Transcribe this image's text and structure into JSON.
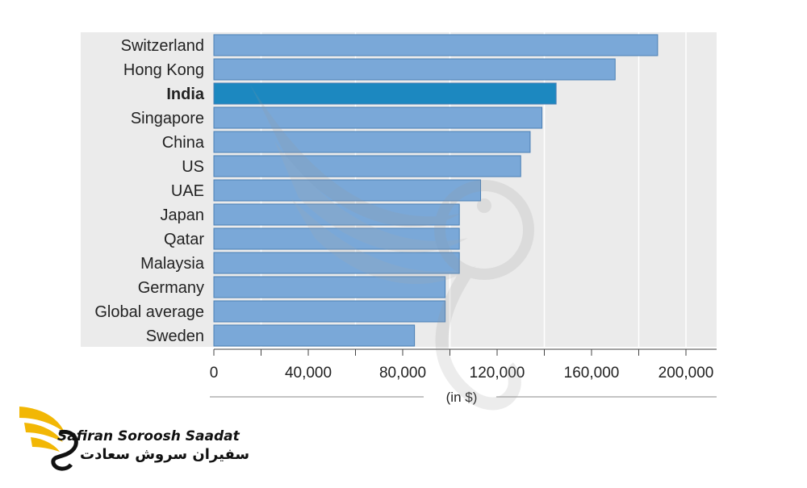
{
  "chart_data": {
    "type": "bar",
    "orientation": "horizontal",
    "categories": [
      "Switzerland",
      "Hong Kong",
      "India",
      "Singapore",
      "China",
      "US",
      "UAE",
      "Japan",
      "Qatar",
      "Malaysia",
      "Germany",
      "Global average",
      "Sweden"
    ],
    "values": [
      188000,
      170000,
      145000,
      139000,
      134000,
      130000,
      113000,
      104000,
      104000,
      104000,
      98000,
      98000,
      85000
    ],
    "highlight": "India",
    "xticks": [
      0,
      40000,
      80000,
      120000,
      160000,
      200000
    ],
    "xtick_labels": [
      "0",
      "40,000",
      "80,000",
      "120,000",
      "160,000",
      "200,000"
    ],
    "xlim": [
      0,
      200000
    ],
    "xlabel": "(in $)",
    "title": "",
    "grid": true,
    "colors": {
      "bar": "#7aa8d8",
      "bar_border": "#4a7fb5",
      "highlight": "#1c88c0",
      "panel": "#ebebeb",
      "grid": "#ffffff"
    }
  },
  "logo": {
    "name_en": "Safiran Soroosh Saadat",
    "name_fa": "سفیران سروش سعادت",
    "colors": {
      "wing": "#f2b705",
      "ink": "#111111"
    }
  }
}
